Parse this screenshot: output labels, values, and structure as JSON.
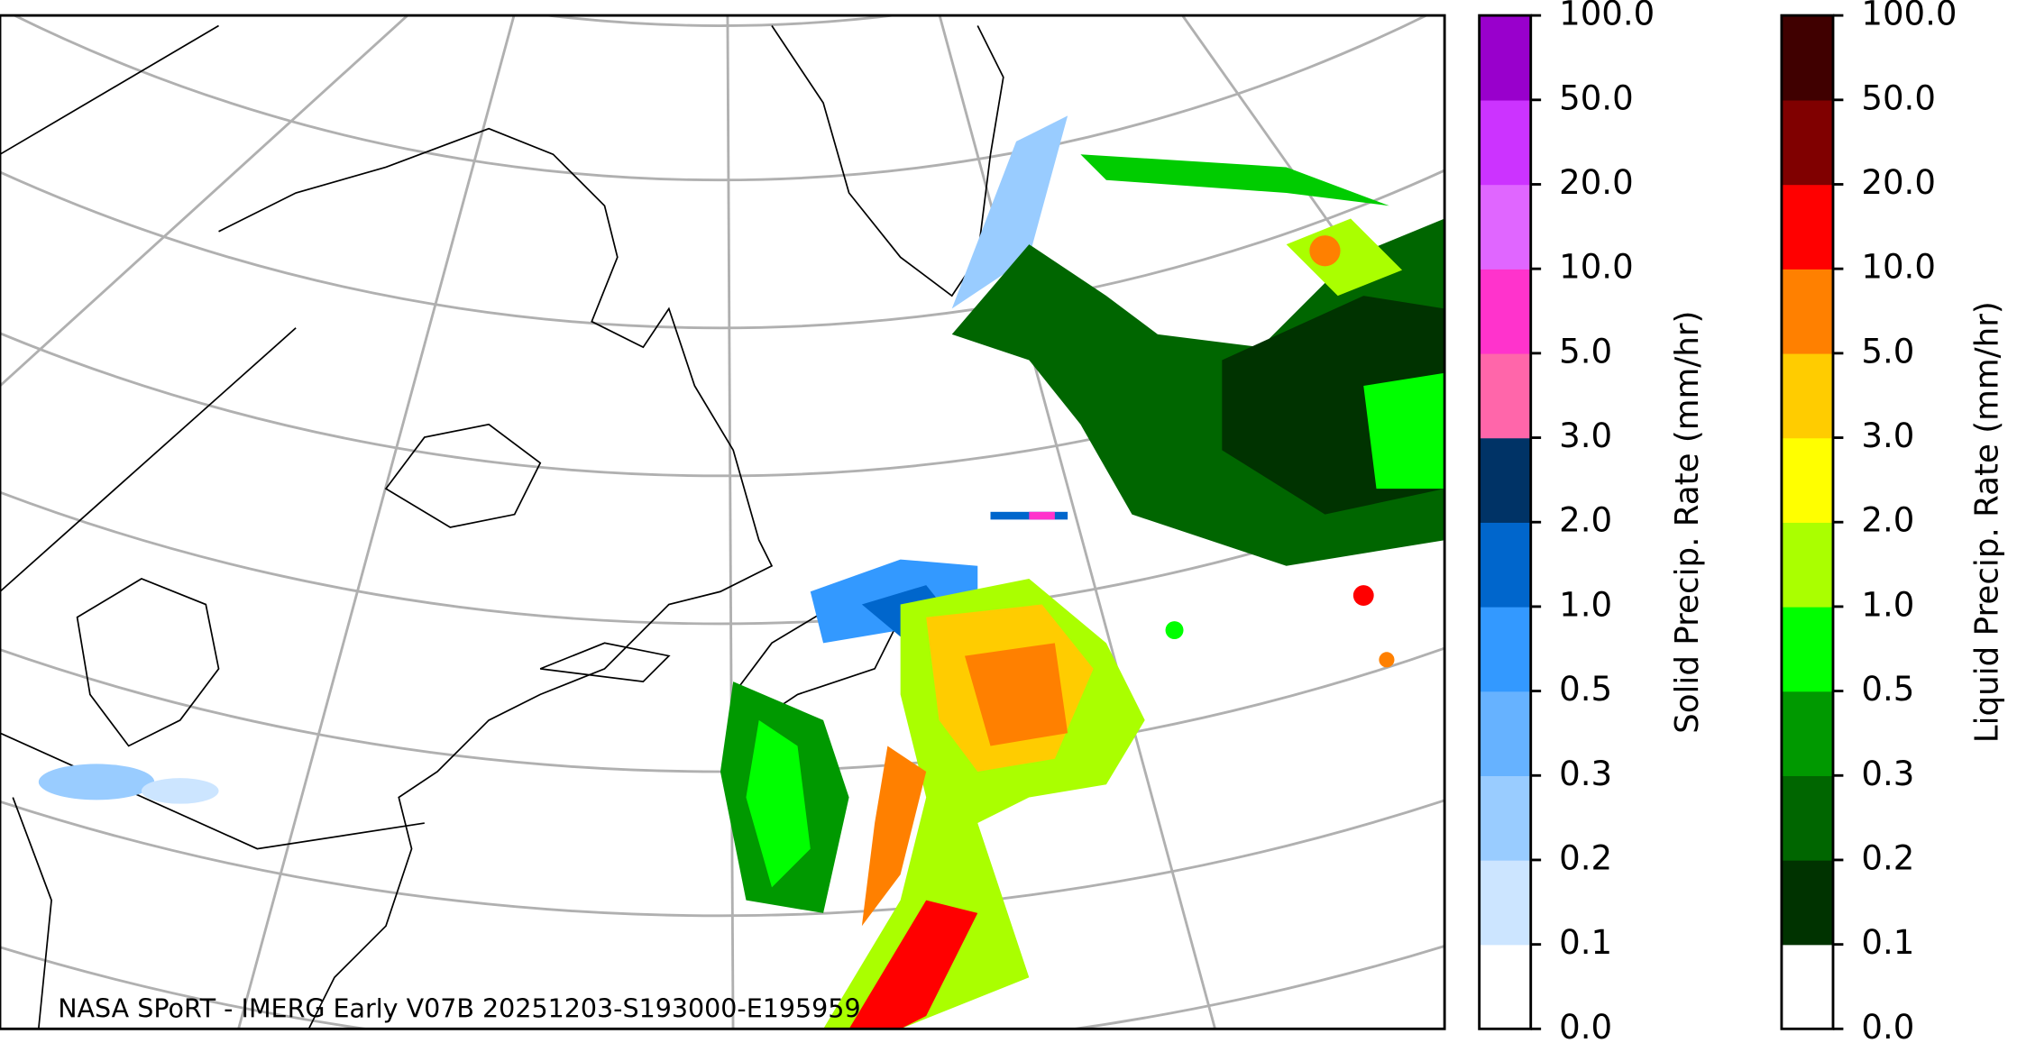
{
  "map": {
    "footer": "NASA SPoRT - IMERG Early V07B 20251203-S193000-E195959"
  },
  "colorbars": [
    {
      "label": "Solid Precip. Rate (mm/hr)",
      "colors": [
        "#ffffff",
        "#cce5ff",
        "#99ccff",
        "#66b2ff",
        "#3399ff",
        "#0066cc",
        "#003366",
        "#ff66aa",
        "#ff33cc",
        "#e066ff",
        "#cc33ff",
        "#9900cc"
      ],
      "ticks": [
        {
          "value": 0,
          "label": "0.0"
        },
        {
          "value": 0.1,
          "label": "0.1"
        },
        {
          "value": 0.2,
          "label": "0.2"
        },
        {
          "value": 0.3,
          "label": "0.3"
        },
        {
          "value": 0.5,
          "label": "0.5"
        },
        {
          "value": 1,
          "label": "1.0"
        },
        {
          "value": 2,
          "label": "2.0"
        },
        {
          "value": 3,
          "label": "3.0"
        },
        {
          "value": 5,
          "label": "5.0"
        },
        {
          "value": 10,
          "label": "10.0"
        },
        {
          "value": 20,
          "label": "20.0"
        },
        {
          "value": 50,
          "label": "50.0"
        },
        {
          "value": 100,
          "label": "100.0"
        }
      ]
    },
    {
      "label": "Liquid Precip. Rate (mm/hr)",
      "colors": [
        "#ffffff",
        "#003300",
        "#006600",
        "#009900",
        "#00ff00",
        "#aaff00",
        "#ffff00",
        "#ffcc00",
        "#ff8000",
        "#ff0000",
        "#800000",
        "#400000"
      ],
      "ticks": [
        {
          "value": 0,
          "label": "0.0"
        },
        {
          "value": 0.1,
          "label": "0.1"
        },
        {
          "value": 0.2,
          "label": "0.2"
        },
        {
          "value": 0.3,
          "label": "0.3"
        },
        {
          "value": 0.5,
          "label": "0.5"
        },
        {
          "value": 1,
          "label": "1.0"
        },
        {
          "value": 2,
          "label": "2.0"
        },
        {
          "value": 3,
          "label": "3.0"
        },
        {
          "value": 5,
          "label": "5.0"
        },
        {
          "value": 10,
          "label": "10.0"
        },
        {
          "value": 20,
          "label": "20.0"
        },
        {
          "value": 50,
          "label": "50.0"
        },
        {
          "value": 100,
          "label": "100.0"
        }
      ]
    }
  ]
}
